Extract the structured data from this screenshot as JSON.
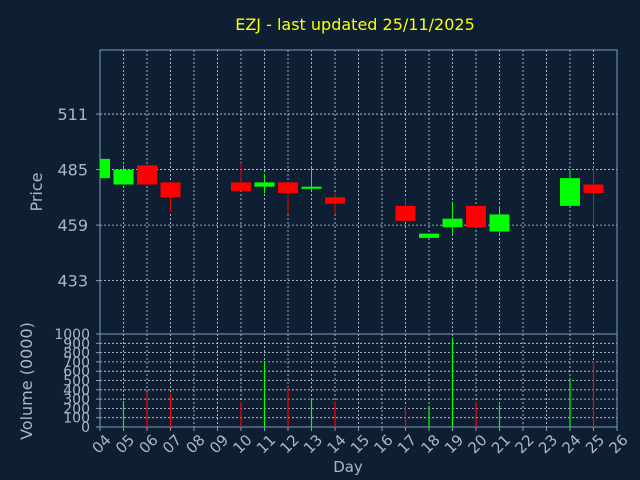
{
  "colors": {
    "background": "#0e1e33",
    "axis": "#7f9ec0",
    "grid": "#cfd8e3",
    "title": "#ffff00",
    "label": "#a9b8c8",
    "up": "#00ff00",
    "down": "#ff0000"
  },
  "chart_data": [
    {
      "type": "candlestick",
      "title": "EZJ - last updated 25/11/2025",
      "ylabel": "Price",
      "ylim": [
        408,
        541
      ],
      "yticks": [
        433,
        459,
        485,
        511
      ],
      "xlim": [
        4,
        26
      ],
      "grid": true,
      "candles": [
        {
          "x": 4,
          "open": 481,
          "high": 490,
          "low": 481,
          "close": 490
        },
        {
          "x": 5,
          "open": 478,
          "high": 487,
          "low": 478,
          "close": 485
        },
        {
          "x": 6,
          "open": 487,
          "high": 487,
          "low": 478,
          "close": 478
        },
        {
          "x": 7,
          "open": 479,
          "high": 479,
          "low": 465,
          "close": 472
        },
        {
          "x": 10,
          "open": 479,
          "high": 488,
          "low": 475,
          "close": 475
        },
        {
          "x": 11,
          "open": 477,
          "high": 483,
          "low": 474,
          "close": 479
        },
        {
          "x": 12,
          "open": 479,
          "high": 479,
          "low": 464,
          "close": 474
        },
        {
          "x": 13,
          "open": 476,
          "high": 486,
          "low": 475,
          "close": 477
        },
        {
          "x": 14,
          "open": 472,
          "high": 474,
          "low": 464,
          "close": 469
        },
        {
          "x": 17,
          "open": 468,
          "high": 472,
          "low": 461,
          "close": 461
        },
        {
          "x": 18,
          "open": 453,
          "high": 455,
          "low": 453,
          "close": 455
        },
        {
          "x": 19,
          "open": 458,
          "high": 470,
          "low": 455,
          "close": 462
        },
        {
          "x": 20,
          "open": 468,
          "high": 468,
          "low": 458,
          "close": 458
        },
        {
          "x": 21,
          "open": 456,
          "high": 468,
          "low": 455,
          "close": 464
        },
        {
          "x": 24,
          "open": 468,
          "high": 485,
          "low": 468,
          "close": 481
        },
        {
          "x": 25,
          "open": 478,
          "high": 486,
          "low": 459,
          "close": 474
        }
      ]
    },
    {
      "type": "bar",
      "ylabel": "Volume (0000)",
      "ylim": [
        0,
        1000
      ],
      "yticks": [
        0,
        100,
        200,
        300,
        400,
        500,
        600,
        700,
        800,
        900,
        1000
      ],
      "xlabel": "Day",
      "xticks": [
        "04",
        "05",
        "06",
        "07",
        "08",
        "09",
        "10",
        "11",
        "12",
        "13",
        "14",
        "15",
        "16",
        "17",
        "18",
        "19",
        "20",
        "21",
        "22",
        "23",
        "24",
        "25",
        "26"
      ],
      "bars": [
        {
          "x": 5,
          "value": 280,
          "dir": "up"
        },
        {
          "x": 6,
          "value": 380,
          "dir": "down"
        },
        {
          "x": 7,
          "value": 360,
          "dir": "down"
        },
        {
          "x": 10,
          "value": 270,
          "dir": "down"
        },
        {
          "x": 11,
          "value": 710,
          "dir": "up"
        },
        {
          "x": 12,
          "value": 430,
          "dir": "down"
        },
        {
          "x": 13,
          "value": 310,
          "dir": "up"
        },
        {
          "x": 14,
          "value": 280,
          "dir": "down"
        },
        {
          "x": 17,
          "value": 230,
          "dir": "down"
        },
        {
          "x": 18,
          "value": 230,
          "dir": "up"
        },
        {
          "x": 19,
          "value": 960,
          "dir": "up"
        },
        {
          "x": 20,
          "value": 270,
          "dir": "down"
        },
        {
          "x": 21,
          "value": 240,
          "dir": "up"
        },
        {
          "x": 24,
          "value": 520,
          "dir": "up"
        },
        {
          "x": 25,
          "value": 710,
          "dir": "down"
        }
      ]
    }
  ]
}
